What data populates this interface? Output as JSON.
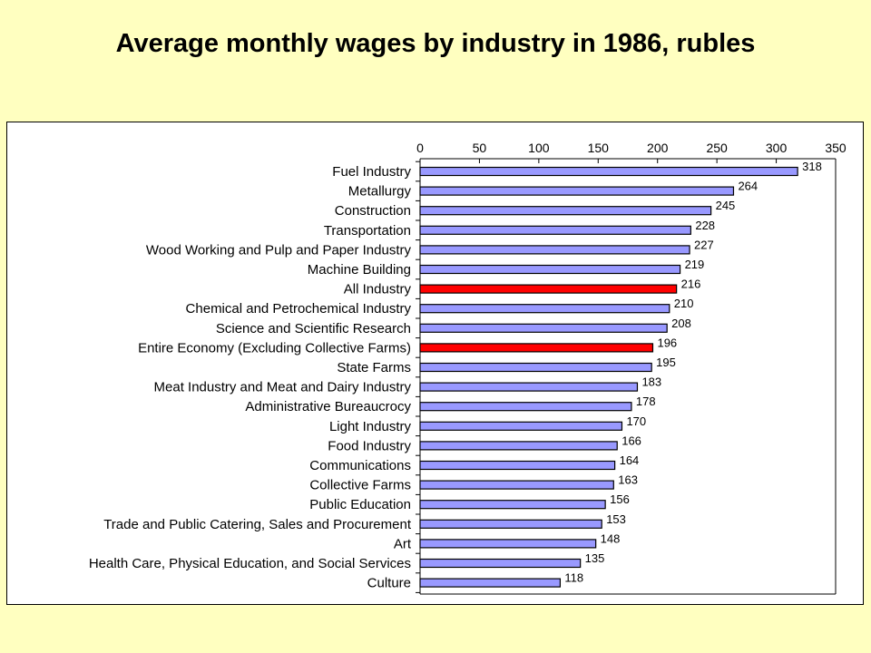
{
  "title": "Average monthly wages by industry in 1986, rubles",
  "colors": {
    "default_bar": "#9999FF",
    "highlight_bar": "#FF0000",
    "background": "#FFFFC0"
  },
  "chart_data": {
    "type": "bar",
    "orientation": "horizontal",
    "title": "Average monthly wages by industry in 1986, rubles",
    "xlabel": "",
    "ylabel": "",
    "xlim": [
      0,
      350
    ],
    "xticks": [
      0,
      50,
      100,
      150,
      200,
      250,
      300,
      350
    ],
    "axis_position": "top",
    "grid": false,
    "legend": "none",
    "categories": [
      "Fuel Industry",
      "Metallurgy",
      "Construction",
      "Transportation",
      "Wood Working and Pulp and Paper Industry",
      "Machine Building",
      "All Industry",
      "Chemical and Petrochemical Industry",
      "Science and Scientific Research",
      "Entire Economy (Excluding Collective Farms)",
      "State Farms",
      "Meat Industry and Meat and Dairy Industry",
      "Administrative Bureaucrocy",
      "Light Industry",
      "Food Industry",
      "Communications",
      "Collective Farms",
      "Public Education",
      "Trade and Public Catering, Sales and Procurement",
      "Art",
      "Health Care, Physical Education, and Social Services",
      "Culture"
    ],
    "values": [
      318,
      264,
      245,
      228,
      227,
      219,
      216,
      210,
      208,
      196,
      195,
      183,
      178,
      170,
      166,
      164,
      163,
      156,
      153,
      148,
      135,
      118
    ],
    "highlighted": [
      "All Industry",
      "Entire Economy (Excluding Collective Farms)"
    ]
  }
}
